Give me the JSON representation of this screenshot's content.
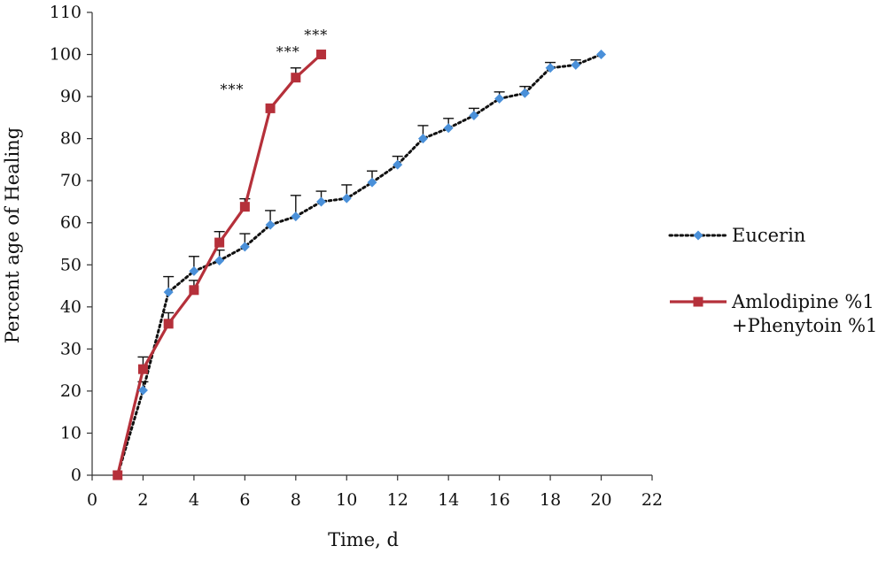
{
  "chart_data": {
    "type": "line",
    "title": "",
    "xlabel": "Time, d",
    "ylabel": "Percent age of Healing",
    "xlim": [
      0,
      22
    ],
    "ylim": [
      0,
      110
    ],
    "x_ticks": [
      "0",
      "2",
      "4",
      "6",
      "8",
      "10",
      "12",
      "14",
      "16",
      "18",
      "20",
      "22"
    ],
    "y_ticks": [
      "0",
      "10",
      "20",
      "30",
      "40",
      "50",
      "60",
      "70",
      "80",
      "90",
      "100",
      "110"
    ],
    "grid": false,
    "legend_position": "right",
    "series": [
      {
        "name": "Eucerin",
        "color": "#4a90d9",
        "line_color": "#111111",
        "line_style": "dotted",
        "marker": "diamond",
        "x": [
          1,
          2,
          3,
          4,
          5,
          6,
          7,
          8,
          9,
          10,
          11,
          12,
          13,
          14,
          15,
          16,
          17,
          18,
          19,
          20
        ],
        "y": [
          0,
          20.2,
          43.5,
          48.5,
          51,
          54.3,
          59.5,
          61.5,
          65,
          65.8,
          69.6,
          73.8,
          80,
          82.5,
          85.5,
          89.5,
          90.8,
          96.8,
          97.5,
          100
        ],
        "err": [
          0,
          2,
          3.7,
          3.5,
          2.5,
          3.1,
          3.4,
          5,
          2.5,
          3.2,
          2.7,
          2,
          3.1,
          2.3,
          1.7,
          1.6,
          1.6,
          1.3,
          1.2,
          0
        ]
      },
      {
        "name": "Amlodipine %1 +Phenytoin %1",
        "legend_lines": [
          "Amlodipine %1",
          "+Phenytoin %1"
        ],
        "color": "#b5303a",
        "line_style": "solid",
        "marker": "square",
        "x": [
          1,
          2,
          3,
          4,
          5,
          6,
          7,
          8,
          9
        ],
        "y": [
          0,
          25.2,
          36,
          44,
          55.3,
          63.8,
          87.2,
          94.5,
          100
        ],
        "err": [
          0,
          2.9,
          2.6,
          2.3,
          2.6,
          1.9,
          0,
          2.3,
          0
        ]
      }
    ],
    "annotations": [
      {
        "text": "***",
        "x": 5.5,
        "y": 90.5
      },
      {
        "text": "***",
        "x": 7.7,
        "y": 99.5
      },
      {
        "text": "***",
        "x": 8.8,
        "y": 103.5
      }
    ]
  }
}
